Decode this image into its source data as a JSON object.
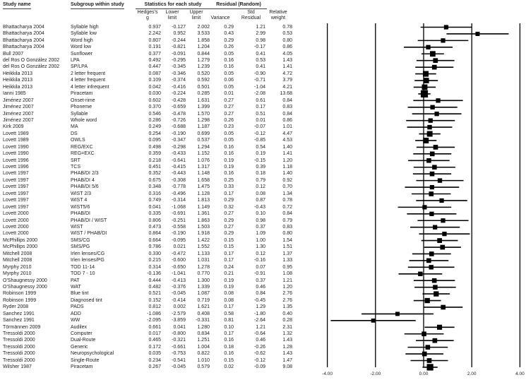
{
  "table": {
    "headers": {
      "study": "Study name",
      "subgroup": "Subgroup within study",
      "stats_group": "Statistics for each study",
      "residual_group": "Residual (Random)",
      "hedges": "Hedges's\ng",
      "lower": "Lower\nlimit",
      "upper": "Upper\nlimit",
      "variance": "Variance",
      "std_residual": "Std\nResidual",
      "rel_weight": "Relative\nweight"
    }
  },
  "colors": {
    "text": "#1c1c1c",
    "line": "#000000",
    "marker": "#000000",
    "background": "#ffffff"
  },
  "chart_data": {
    "type": "forest",
    "effect_measure": "Hedges's g",
    "xticks": [
      -4,
      -2,
      0,
      2,
      4
    ],
    "xtick_labels": [
      "-4.00",
      "-2.00",
      "0.00",
      "2.00",
      "4.00"
    ],
    "xlim": [
      -4.7,
      4.3
    ],
    "grid": "vertical-reference-lines",
    "legend": "none",
    "studies": [
      {
        "study": "Bhattacharya 2004",
        "subgroup": "Syllable high",
        "g": "0.937",
        "lower": "-0.127",
        "upper": "2.002",
        "variance": "0.29",
        "std_residual": "1.21",
        "rel_weight": "0.78"
      },
      {
        "study": "Bhattacharya 2004",
        "subgroup": "Syllable low",
        "g": "2.242",
        "lower": "0.952",
        "upper": "3.533",
        "variance": "0.43",
        "std_residual": "2.99",
        "rel_weight": "0.53"
      },
      {
        "study": "Bhattacharya 2004",
        "subgroup": "Word high",
        "g": "0.807",
        "lower": "-0.244",
        "upper": "1.858",
        "variance": "0.29",
        "std_residual": "0.98",
        "rel_weight": "0.80"
      },
      {
        "study": "Bhattacharya 2004",
        "subgroup": "Word low",
        "g": "0.191",
        "lower": "-0.821",
        "upper": "1.204",
        "variance": "0.26",
        "std_residual": "-0.17",
        "rel_weight": "0.86"
      },
      {
        "study": "Bull 2007",
        "subgroup": "Sunflower",
        "g": "0.377",
        "lower": "-0.091",
        "upper": "0.844",
        "variance": "0.05",
        "std_residual": "0.41",
        "rel_weight": "4.05"
      },
      {
        "study": "del Ros O González 2002",
        "subgroup": "LPA",
        "g": "0.492",
        "lower": "-0.295",
        "upper": "1.279",
        "variance": "0.16",
        "std_residual": "0.53",
        "rel_weight": "1.43"
      },
      {
        "study": "del Ros O González 2002",
        "subgroup": "SP/LPA",
        "g": "0.447",
        "lower": "-0.345",
        "upper": "1.239",
        "variance": "0.16",
        "std_residual": "0.41",
        "rel_weight": "1.41"
      },
      {
        "study": "Heikkila 2013",
        "subgroup": "2 letter frequent",
        "g": "0.087",
        "lower": "-0.346",
        "upper": "0.520",
        "variance": "0.05",
        "std_residual": "-0.90",
        "rel_weight": "4.72"
      },
      {
        "study": "Heikkila 2013",
        "subgroup": "4 letter frequent",
        "g": "0.109",
        "lower": "-0.374",
        "upper": "0.592",
        "variance": "0.06",
        "std_residual": "-0.71",
        "rel_weight": "3.79"
      },
      {
        "study": "Heikkila 2013",
        "subgroup": "4 letter infrequent",
        "g": "0.042",
        "lower": "-0.416",
        "upper": "0.501",
        "variance": "0.05",
        "std_residual": "-1.04",
        "rel_weight": "4.21"
      },
      {
        "study": "Ianni 1985",
        "subgroup": "Piracetam",
        "g": "0.030",
        "lower": "-0.224",
        "upper": "0.285",
        "variance": "0.01",
        "std_residual": "-2.08",
        "rel_weight": "13.68"
      },
      {
        "study": "Jiménez 2007",
        "subgroup": "Onset-rime",
        "g": "0.602",
        "lower": "-0.428",
        "upper": "1.631",
        "variance": "0.27",
        "std_residual": "0.61",
        "rel_weight": "0.84"
      },
      {
        "study": "Jiménez 2007",
        "subgroup": "Phoneme",
        "g": "0.370",
        "lower": "-0.659",
        "upper": "1.399",
        "variance": "0.27",
        "std_residual": "0.17",
        "rel_weight": "0.83"
      },
      {
        "study": "Jiménez 2007",
        "subgroup": "Syllable",
        "g": "0.546",
        "lower": "-0.478",
        "upper": "1.570",
        "variance": "0.27",
        "std_residual": "0.51",
        "rel_weight": "0.84"
      },
      {
        "study": "Jiménez 2007",
        "subgroup": "Whole word",
        "g": "0.286",
        "lower": "-0.726",
        "upper": "1.298",
        "variance": "0.26",
        "std_residual": "0.01",
        "rel_weight": "0.86"
      },
      {
        "study": "Kirk 2009",
        "subgroup": "MA",
        "g": "0.249",
        "lower": "-0.688",
        "upper": "1.187",
        "variance": "0.23",
        "std_residual": "-0.07",
        "rel_weight": "1.01"
      },
      {
        "study": "Lovett 1989",
        "subgroup": "DS",
        "g": "0.254",
        "lower": "-0.190",
        "upper": "0.699",
        "variance": "0.05",
        "std_residual": "-0.12",
        "rel_weight": "4.47"
      },
      {
        "study": "Lovett 1989",
        "subgroup": "OWLS",
        "g": "0.095",
        "lower": "-0.347",
        "upper": "0.537",
        "variance": "0.05",
        "std_residual": "-0.85",
        "rel_weight": "4.53"
      },
      {
        "study": "Lovett 1990",
        "subgroup": "REG/EXC",
        "g": "0.498",
        "lower": "-0.298",
        "upper": "1.294",
        "variance": "0.16",
        "std_residual": "0.54",
        "rel_weight": "1.40"
      },
      {
        "study": "Lovett 1990",
        "subgroup": "REG=EXC",
        "g": "0.359",
        "lower": "-0.433",
        "upper": "1.152",
        "variance": "0.16",
        "std_residual": "0.19",
        "rel_weight": "1.41"
      },
      {
        "study": "Lovett 1996",
        "subgroup": "SRT",
        "g": "0.218",
        "lower": "-0.641",
        "upper": "1.076",
        "variance": "0.19",
        "std_residual": "-0.15",
        "rel_weight": "1.20"
      },
      {
        "study": "Lovett 1996",
        "subgroup": "TCS",
        "g": "0.451",
        "lower": "-0.415",
        "upper": "1.317",
        "variance": "0.19",
        "std_residual": "0.39",
        "rel_weight": "1.18"
      },
      {
        "study": "Lovett 1997",
        "subgroup": "PHAB/DI 2/3",
        "g": "0.352",
        "lower": "-0.443",
        "upper": "1.148",
        "variance": "0.16",
        "std_residual": "0.18",
        "rel_weight": "1.40"
      },
      {
        "study": "Lovett 1997",
        "subgroup": "PHAB/DI 4",
        "g": "0.675",
        "lower": "-0.308",
        "upper": "1.658",
        "variance": "0.25",
        "std_residual": "0.79",
        "rel_weight": "0.92"
      },
      {
        "study": "Lovett 1997",
        "subgroup": "PHAB/DI 5/6",
        "g": "0.348",
        "lower": "-0.778",
        "upper": "1.475",
        "variance": "0.33",
        "std_residual": "0.12",
        "rel_weight": "0.70"
      },
      {
        "study": "Lovett 1997",
        "subgroup": "WIST 2/3",
        "g": "0.316",
        "lower": "-0.496",
        "upper": "1.128",
        "variance": "0.17",
        "std_residual": "0.08",
        "rel_weight": "1.34"
      },
      {
        "study": "Lovett 1997",
        "subgroup": "WIST 4",
        "g": "0.749",
        "lower": "-0.314",
        "upper": "1.813",
        "variance": "0.29",
        "std_residual": "0.87",
        "rel_weight": "0.78"
      },
      {
        "study": "Lovett 1997",
        "subgroup": "WIST5/6",
        "g": "0.041",
        "lower": "-1.068",
        "upper": "1.149",
        "variance": "0.32",
        "std_residual": "-0.43",
        "rel_weight": "0.72"
      },
      {
        "study": "Lovett 2000",
        "subgroup": "PHAB/DI",
        "g": "0.335",
        "lower": "-0.691",
        "upper": "1.361",
        "variance": "0.27",
        "std_residual": "0.10",
        "rel_weight": "0.84"
      },
      {
        "study": "Lovett 2000",
        "subgroup": "PHAB/DI / WIST",
        "g": "0.806",
        "lower": "-0.251",
        "upper": "1.863",
        "variance": "0.29",
        "std_residual": "0.98",
        "rel_weight": "0.79"
      },
      {
        "study": "Lovett 2000",
        "subgroup": "WIST",
        "g": "0.473",
        "lower": "-0.558",
        "upper": "1.503",
        "variance": "0.27",
        "std_residual": "0.37",
        "rel_weight": "0.83"
      },
      {
        "study": "Lovett 2000",
        "subgroup": "WIST / PHAB/DI",
        "g": "0.864",
        "lower": "-0.190",
        "upper": "1.918",
        "variance": "0.29",
        "std_residual": "1.09",
        "rel_weight": "0.80"
      },
      {
        "study": "McPhillips 2000",
        "subgroup": "SMS/CG",
        "g": "0.664",
        "lower": "-0.095",
        "upper": "1.422",
        "variance": "0.15",
        "std_residual": "1.00",
        "rel_weight": "1.54"
      },
      {
        "study": "McPhillips 2000",
        "subgroup": "SMS/PG",
        "g": "0.786",
        "lower": "0.021",
        "upper": "1.552",
        "variance": "0.15",
        "std_residual": "1.30",
        "rel_weight": "1.51"
      },
      {
        "study": "Mitchell 2008",
        "subgroup": "Irlen lenses/CG",
        "g": "0.330",
        "lower": "-0.472",
        "upper": "1.133",
        "variance": "0.17",
        "std_residual": "0.12",
        "rel_weight": "1.37"
      },
      {
        "study": "Mitchell 2008",
        "subgroup": "Irlen lenses/PG",
        "g": "0.215",
        "lower": "-0.600",
        "upper": "1.031",
        "variance": "0.17",
        "std_residual": "-0.16",
        "rel_weight": "1.33"
      },
      {
        "study": "Myrphy 2010",
        "subgroup": "TOD 11-14",
        "g": "0.314",
        "lower": "-0.650",
        "upper": "1.278",
        "variance": "0.24",
        "std_residual": "0.07",
        "rel_weight": "0.95"
      },
      {
        "study": "Myrphy 2010",
        "subgroup": "TOD 7 - 10",
        "g": "-0.136",
        "lower": "-1.041",
        "upper": "0.770",
        "variance": "0.21",
        "std_residual": "-0.91",
        "rel_weight": "1.08"
      },
      {
        "study": "O'Shaugnessy 2000",
        "subgroup": "PAT",
        "g": "0.444",
        "lower": "-0.413",
        "upper": "1.300",
        "variance": "0.19",
        "std_residual": "0.37",
        "rel_weight": "1.21"
      },
      {
        "study": "O'Shaugnessy 2000",
        "subgroup": "WAT",
        "g": "0.482",
        "lower": "-0.376",
        "upper": "1.339",
        "variance": "0.19",
        "std_residual": "0.46",
        "rel_weight": "1.20"
      },
      {
        "study": "Robinson 1999",
        "subgroup": "Blue tint",
        "g": "0.521",
        "lower": "-0.045",
        "upper": "1.087",
        "variance": "0.08",
        "std_residual": "0.84",
        "rel_weight": "2.76"
      },
      {
        "study": "Robinson 1999",
        "subgroup": "Diagnosed tint",
        "g": "0.152",
        "lower": "-0.414",
        "upper": "0.719",
        "variance": "0.08",
        "std_residual": "-0.45",
        "rel_weight": "2.76"
      },
      {
        "study": "Ryder 2008",
        "subgroup": "PADS",
        "g": "0.812",
        "lower": "0.002",
        "upper": "1.621",
        "variance": "0.17",
        "std_residual": "1.29",
        "rel_weight": "1.35"
      },
      {
        "study": "Sanchez 1991",
        "subgroup": "ADD",
        "g": "-1.086",
        "lower": "-2.579",
        "upper": "0.408",
        "variance": "0.58",
        "std_residual": "-1.80",
        "rel_weight": "0.40"
      },
      {
        "study": "Sanchez 1991",
        "subgroup": "WW",
        "g": "-2.095",
        "lower": "-3.859",
        "upper": "-0.331",
        "variance": "0.81",
        "std_residual": "-2.64",
        "rel_weight": "0.28"
      },
      {
        "study": "Törmännen 2009",
        "subgroup": "Audilex",
        "g": "0.661",
        "lower": "0.041",
        "upper": "1.280",
        "variance": "0.10",
        "std_residual": "1.21",
        "rel_weight": "2.31"
      },
      {
        "study": "Tressoldi 2000",
        "subgroup": "Computer",
        "g": "0.017",
        "lower": "-0.800",
        "upper": "0.834",
        "variance": "0.17",
        "std_residual": "-0.64",
        "rel_weight": "1.32"
      },
      {
        "study": "Tressoldi 2000",
        "subgroup": "Dual-Route",
        "g": "0.465",
        "lower": "-0.321",
        "upper": "1.251",
        "variance": "0.16",
        "std_residual": "0.46",
        "rel_weight": "1.43"
      },
      {
        "study": "Tressoldi 2000",
        "subgroup": "Generic",
        "g": "0.172",
        "lower": "-0.661",
        "upper": "1.004",
        "variance": "0.18",
        "std_residual": "-0.26",
        "rel_weight": "1.28"
      },
      {
        "study": "Tressoldi 2000",
        "subgroup": "Neuropsychological",
        "g": "0.035",
        "lower": "-0.753",
        "upper": "0.822",
        "variance": "0.16",
        "std_residual": "-0.62",
        "rel_weight": "1.43"
      },
      {
        "study": "Tressoldi 2000",
        "subgroup": "Single-Route",
        "g": "0.234",
        "lower": "-0.541",
        "upper": "1.010",
        "variance": "0.15",
        "std_residual": "-0.12",
        "rel_weight": "1.47"
      },
      {
        "study": "Wilsher 1987",
        "subgroup": "Piracetam",
        "g": "0.267",
        "lower": "-0.045",
        "upper": "0.579",
        "variance": "0.02",
        "std_residual": "-0.09",
        "rel_weight": "9.08"
      }
    ]
  }
}
